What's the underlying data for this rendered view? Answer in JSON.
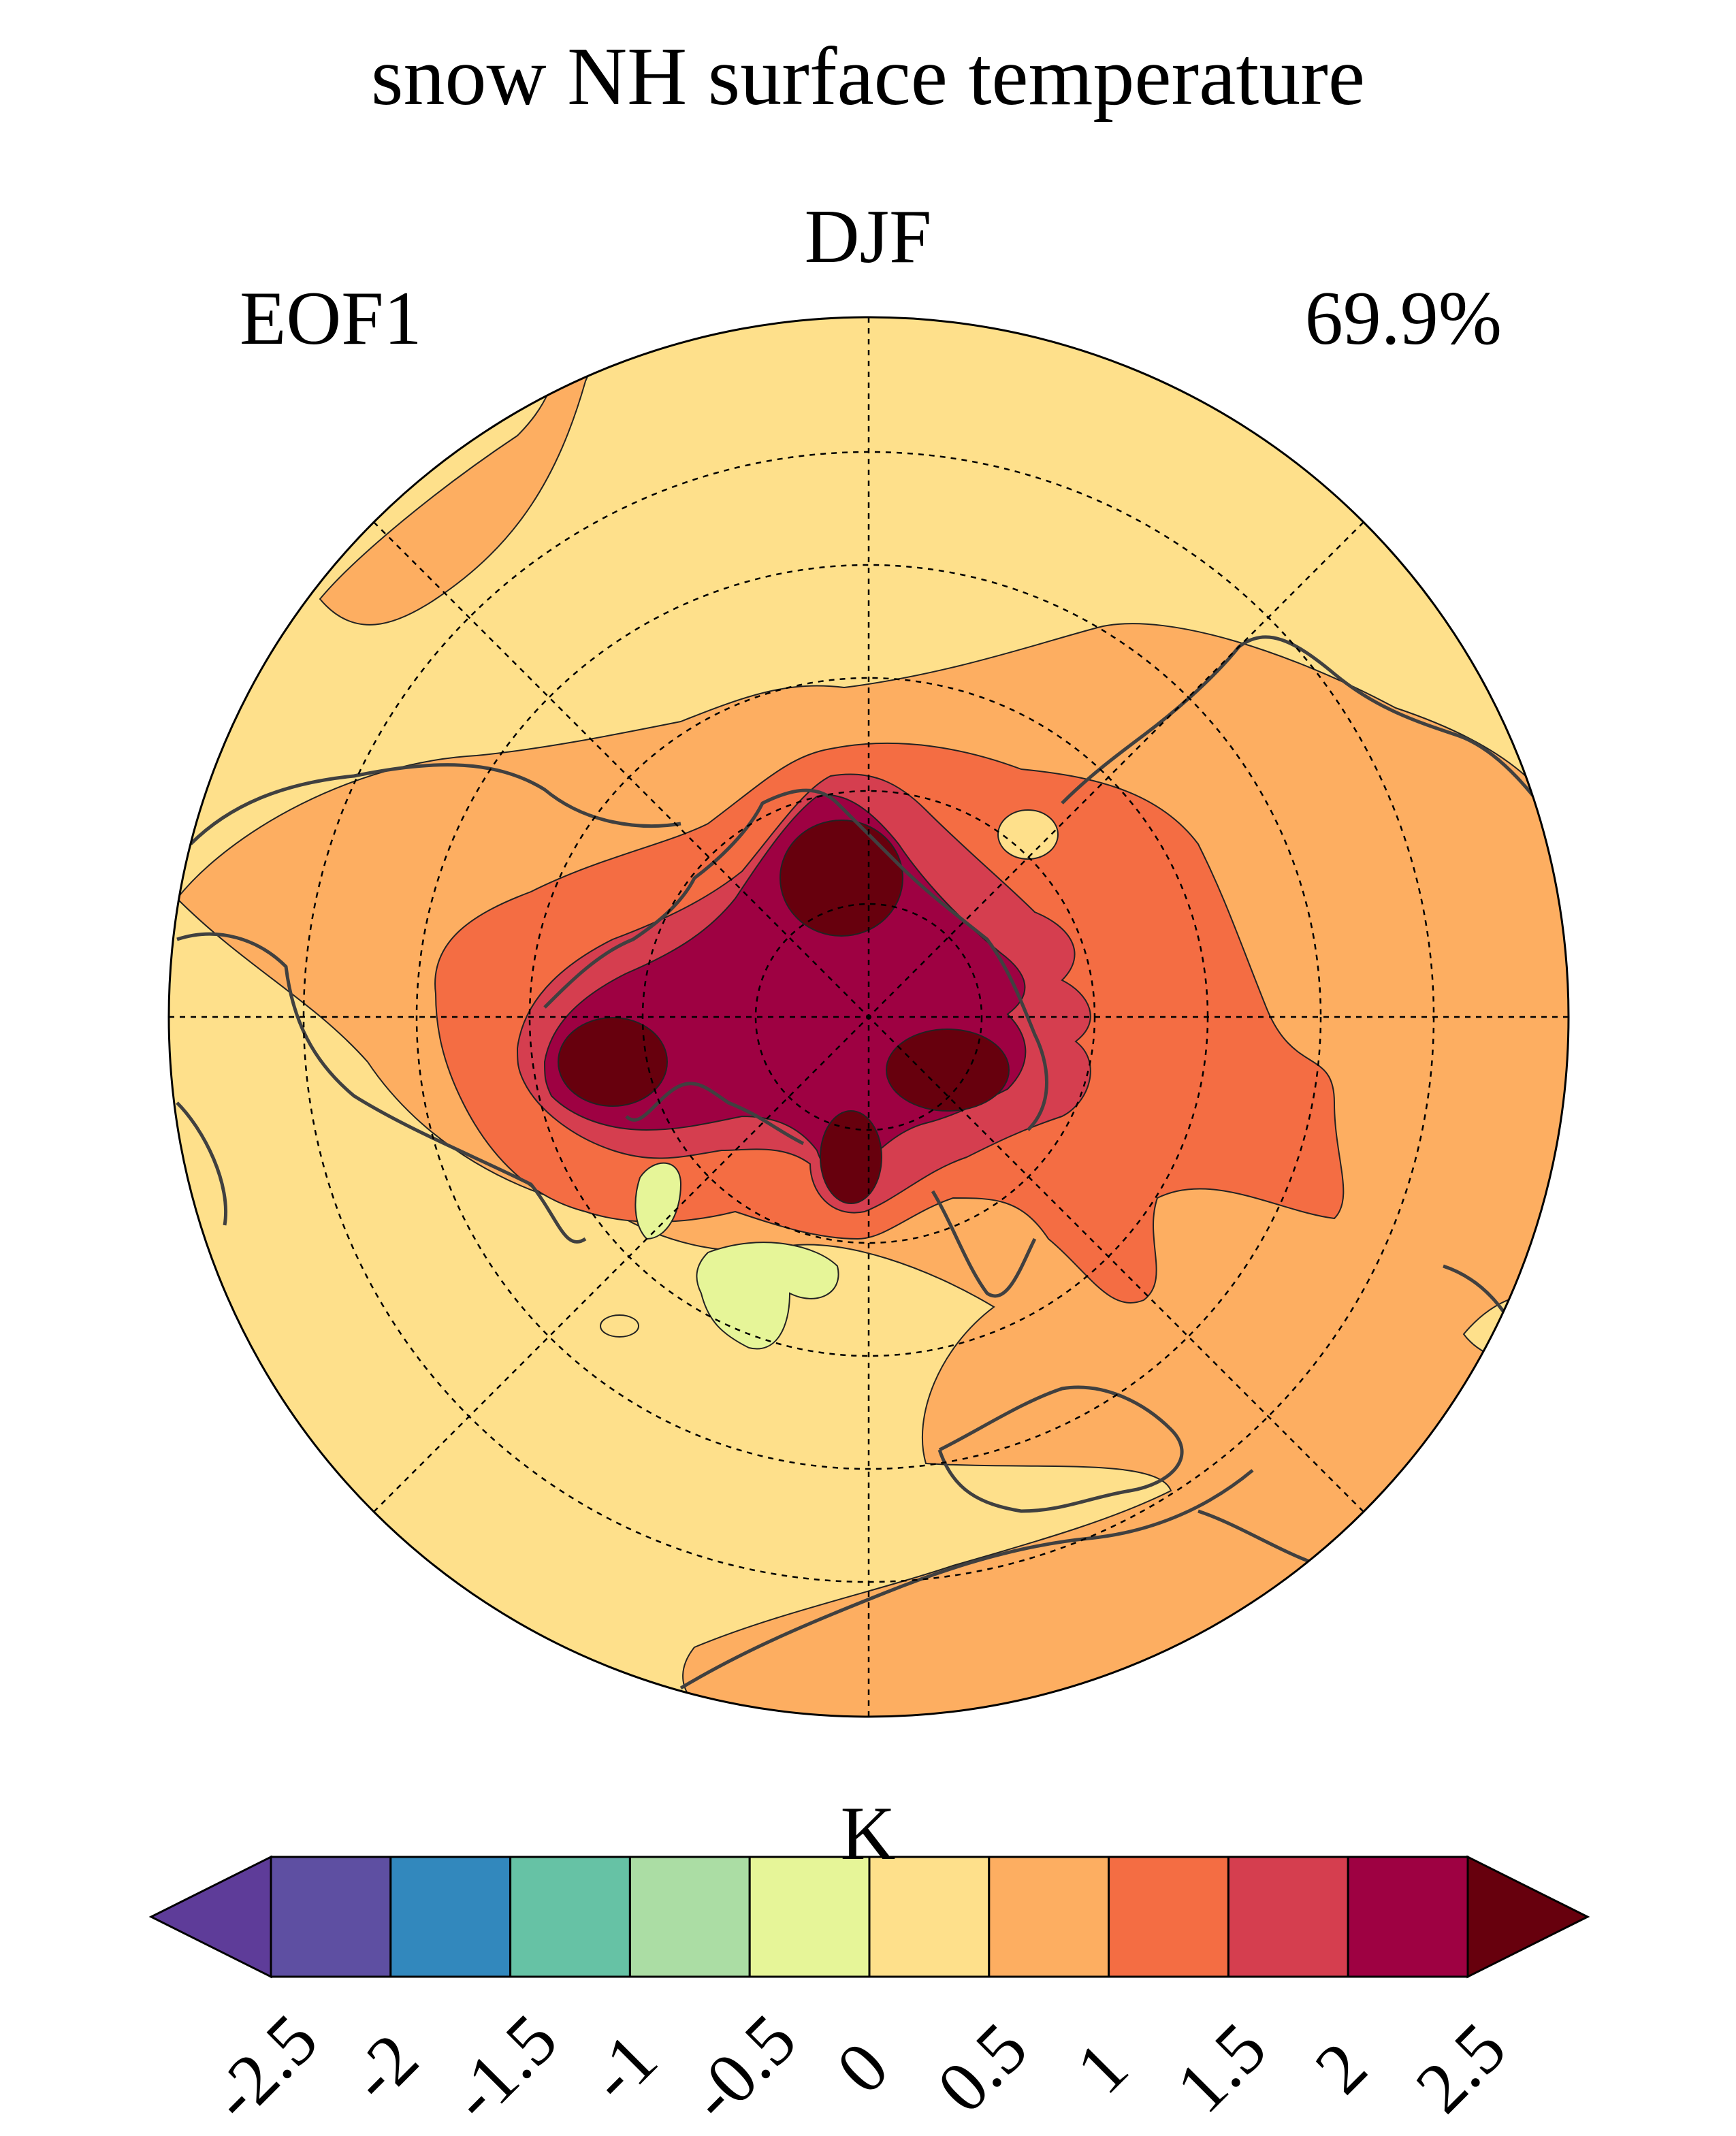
{
  "title": "snow NH surface temperature",
  "season": "DJF",
  "mode": "EOF1",
  "variance_explained": "69.9%",
  "colorbar": {
    "unit": "K",
    "ticks": [
      "-2.5",
      "-2",
      "-1.5",
      "-1",
      "-0.5",
      "0",
      "0.5",
      "1",
      "1.5",
      "2",
      "2.5"
    ],
    "bins": [
      {
        "range": "<-2.5",
        "color": "#5e3c99"
      },
      {
        "range": "-2.5 to -2",
        "color": "#5e4fa2"
      },
      {
        "range": "-2 to -1.5",
        "color": "#3288bd"
      },
      {
        "range": "-1.5 to -1",
        "color": "#66c2a5"
      },
      {
        "range": "-1 to -0.5",
        "color": "#abdda4"
      },
      {
        "range": "-0.5 to 0",
        "color": "#e6f598"
      },
      {
        "range": "0 to 0.5",
        "color": "#fee08b"
      },
      {
        "range": "0.5 to 1",
        "color": "#fdae61"
      },
      {
        "range": "1 to 1.5",
        "color": "#f46d43"
      },
      {
        "range": "1.5 to 2",
        "color": "#d53e4f"
      },
      {
        "range": "2 to 2.5",
        "color": "#9e0142"
      },
      {
        "range": ">2.5",
        "color": "#67000d"
      }
    ]
  },
  "map": {
    "projection": "north polar stereographic",
    "graticule": "dashed",
    "coastline_color": "#404040"
  }
}
